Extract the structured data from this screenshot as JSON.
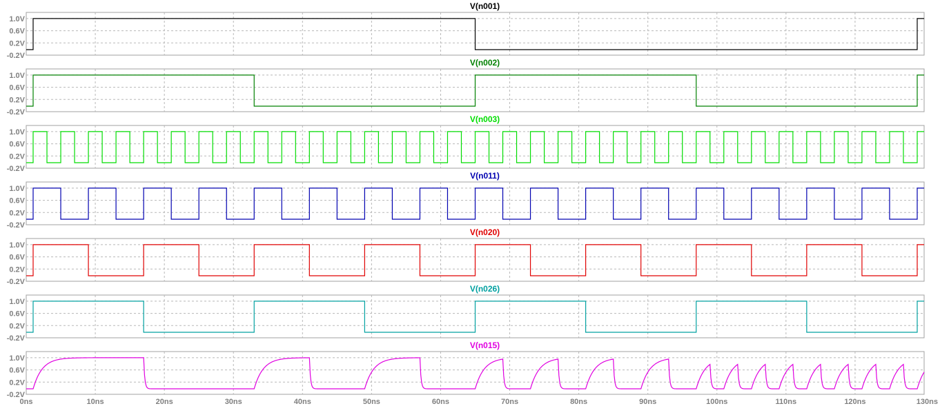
{
  "chart_data": {
    "type": "line",
    "x_unit": "ns",
    "xlim": [
      0,
      130
    ],
    "x_ticks": [
      {
        "value": 0,
        "label": "0ns"
      },
      {
        "value": 10,
        "label": "10ns"
      },
      {
        "value": 20,
        "label": "20ns"
      },
      {
        "value": 30,
        "label": "30ns"
      },
      {
        "value": 40,
        "label": "40ns"
      },
      {
        "value": 50,
        "label": "50ns"
      },
      {
        "value": 60,
        "label": "60ns"
      },
      {
        "value": 70,
        "label": "70ns"
      },
      {
        "value": 80,
        "label": "80ns"
      },
      {
        "value": 90,
        "label": "90ns"
      },
      {
        "value": 100,
        "label": "100ns"
      },
      {
        "value": 110,
        "label": "110ns"
      },
      {
        "value": 120,
        "label": "120ns"
      },
      {
        "value": 130,
        "label": "130ns"
      }
    ],
    "ylim": [
      -0.2,
      1.2
    ],
    "y_ticks": [
      {
        "value": 1.0,
        "label": "1.0V"
      },
      {
        "value": 0.6,
        "label": "0.6V"
      },
      {
        "value": 0.2,
        "label": "0.2V"
      },
      {
        "value": -0.2,
        "label": "-0.2V"
      }
    ],
    "grid": true,
    "low_level": -0.02,
    "high_level": 1.0,
    "panels": [
      {
        "name": "V(n001)",
        "color": "#000000",
        "kind": "digital",
        "initial": 0,
        "edges": [
          1,
          65,
          129
        ]
      },
      {
        "name": "V(n002)",
        "color": "#008000",
        "kind": "digital",
        "initial": 0,
        "edges": [
          1,
          33,
          65,
          97,
          129
        ]
      },
      {
        "name": "V(n003)",
        "color": "#00dd00",
        "kind": "digital",
        "initial": 0,
        "edges": [
          1,
          3,
          5,
          7,
          9,
          11,
          13,
          15,
          17,
          19,
          21,
          23,
          25,
          27,
          29,
          31,
          33,
          35,
          37,
          39,
          41,
          43,
          45,
          47,
          49,
          51,
          53,
          55,
          57,
          59,
          61,
          63,
          65,
          67,
          69,
          71,
          73,
          75,
          77,
          79,
          81,
          83,
          85,
          87,
          89,
          91,
          93,
          95,
          97,
          99,
          101,
          103,
          105,
          107,
          109,
          111,
          113,
          115,
          117,
          119,
          121,
          123,
          125,
          127,
          129
        ]
      },
      {
        "name": "V(n011)",
        "color": "#0000b0",
        "kind": "digital",
        "initial": 0,
        "edges": [
          1,
          5,
          9,
          13,
          17,
          21,
          25,
          29,
          33,
          37,
          41,
          45,
          49,
          53,
          57,
          61,
          65,
          69,
          73,
          77,
          81,
          85,
          89,
          93,
          97,
          101,
          105,
          109,
          113,
          117,
          121,
          125,
          129
        ]
      },
      {
        "name": "V(n020)",
        "color": "#e00000",
        "kind": "digital",
        "initial": 0,
        "edges": [
          1,
          9,
          17,
          25,
          33,
          41,
          49,
          57,
          65,
          73,
          81,
          89,
          97,
          105,
          113,
          121,
          129
        ]
      },
      {
        "name": "V(n026)",
        "color": "#00a0a0",
        "kind": "digital",
        "initial": 0,
        "edges": [
          1,
          17,
          33,
          49,
          65,
          81,
          97,
          113,
          129
        ]
      },
      {
        "name": "V(n015)",
        "color": "#e000e0",
        "kind": "analog",
        "tau": 1.3,
        "initial": 0,
        "edges": [
          1,
          17,
          33,
          41,
          49,
          57,
          65,
          69,
          73,
          77,
          81,
          85,
          89,
          93,
          97,
          99,
          101,
          103,
          105,
          107,
          109,
          111,
          113,
          115,
          117,
          119,
          121,
          123,
          125,
          127,
          129
        ]
      }
    ]
  }
}
